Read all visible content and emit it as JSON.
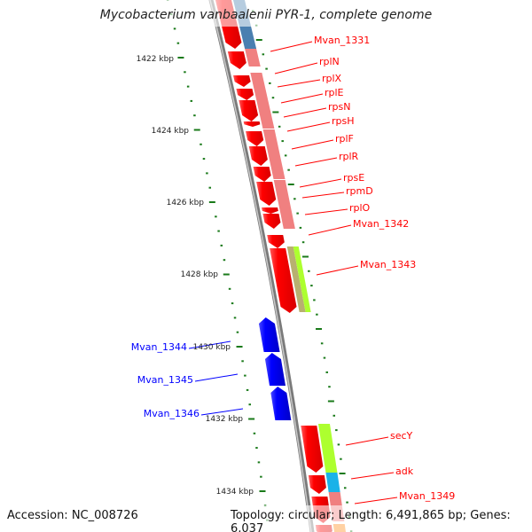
{
  "title": "Mycobacterium vanbaalenii PYR-1, complete genome",
  "accession": "Accession: NC_008726",
  "summary": "Topology: circular; Length: 6,491,865 bp; Genes: 6,037",
  "colors": {
    "forward_gene": "#ff0000",
    "reverse_gene": "#0000ff",
    "ruler": "#1a7a1a",
    "backbone": "#888888"
  },
  "kbp_ticks": [
    "1422 kbp",
    "1424 kbp",
    "1426 kbp",
    "1428 kbp",
    "1430 kbp",
    "1432 kbp",
    "1434 kbp"
  ],
  "forward_labels": [
    "Mvan_1331",
    "rplN",
    "rplX",
    "rplE",
    "rpsN",
    "rpsH",
    "rplF",
    "rplR",
    "rpsE",
    "rpmD",
    "rplO",
    "Mvan_1342",
    "Mvan_1343",
    "secY",
    "adk",
    "Mvan_1349"
  ],
  "reverse_labels": [
    "Mvan_1344",
    "Mvan_1345",
    "Mvan_1346"
  ]
}
